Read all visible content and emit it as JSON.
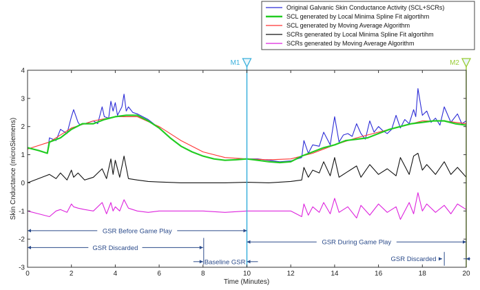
{
  "chart_data": {
    "type": "line",
    "title": "",
    "xlabel": "Time (Minutes)",
    "ylabel": "Skin Cnductance (microSiemens)",
    "xlim": [
      0,
      20
    ],
    "ylim": [
      -3,
      4
    ],
    "xticks": [
      0,
      2,
      4,
      6,
      8,
      10,
      12,
      14,
      16,
      18,
      20
    ],
    "xtick_labels": [
      "0",
      "2",
      "4",
      "6",
      "8",
      "10",
      "12",
      "14",
      "16",
      "18",
      "20"
    ],
    "yticks": [
      -3,
      -2,
      -1,
      0,
      1,
      2,
      3,
      4
    ],
    "ytick_labels": [
      "-3",
      "-2",
      "-1",
      "0",
      "1",
      "2",
      "3",
      "4"
    ],
    "grid": false,
    "legend_position": "top-right",
    "series": [
      {
        "name": "Original Galvanic Skin Conductance Activity (SCL+SCRs)",
        "color": "#2b2bd6",
        "x": [
          0,
          0.5,
          0.9,
          1.0,
          1.3,
          1.5,
          1.8,
          2.0,
          2.1,
          2.3,
          2.4,
          2.6,
          2.8,
          3.0,
          3.2,
          3.4,
          3.5,
          3.7,
          3.8,
          3.9,
          4.0,
          4.1,
          4.3,
          4.4,
          4.5,
          4.6,
          4.8,
          5.0,
          5.5,
          6.0,
          6.5,
          7.0,
          7.5,
          8.0,
          8.5,
          9.0,
          9.5,
          10.0,
          10.5,
          11.0,
          11.5,
          12.0,
          12.5,
          12.6,
          12.8,
          13.0,
          13.3,
          13.5,
          13.8,
          14.0,
          14.2,
          14.4,
          14.6,
          14.8,
          15.0,
          15.2,
          15.4,
          15.6,
          15.8,
          16.0,
          16.2,
          16.4,
          16.6,
          16.8,
          17.0,
          17.2,
          17.4,
          17.6,
          17.7,
          17.8,
          18.0,
          18.2,
          18.4,
          18.6,
          18.8,
          19.0,
          19.3,
          19.6,
          19.8,
          20.0
        ],
        "y": [
          1.25,
          1.15,
          1.05,
          1.6,
          1.5,
          1.9,
          1.75,
          2.35,
          2.6,
          2.15,
          2.05,
          2.1,
          2.15,
          2.2,
          2.1,
          2.7,
          2.35,
          2.3,
          2.9,
          2.55,
          2.85,
          2.4,
          2.7,
          3.15,
          2.55,
          2.7,
          2.5,
          2.45,
          2.25,
          1.95,
          1.6,
          1.3,
          1.1,
          0.95,
          0.85,
          0.8,
          0.82,
          0.85,
          0.85,
          0.8,
          0.75,
          0.78,
          0.9,
          1.5,
          1.05,
          1.35,
          1.3,
          1.8,
          1.35,
          2.35,
          1.45,
          1.7,
          1.75,
          1.65,
          2.1,
          1.75,
          1.55,
          2.2,
          1.8,
          2.0,
          1.85,
          1.75,
          1.9,
          2.4,
          1.95,
          2.25,
          2.1,
          2.6,
          2.35,
          3.35,
          2.4,
          2.55,
          2.15,
          2.3,
          2.05,
          2.7,
          2.15,
          2.45,
          2.1,
          2.2
        ]
      },
      {
        "name": "SCL generated by Local Minima Spline Fit algortihm",
        "color": "#22cc22",
        "x": [
          0,
          0.5,
          0.9,
          1.0,
          1.5,
          2.0,
          2.5,
          3.0,
          3.5,
          4.0,
          4.5,
          5.0,
          5.5,
          6.0,
          6.5,
          7.0,
          7.5,
          8.0,
          8.5,
          9.0,
          9.5,
          10.0,
          10.5,
          11.0,
          11.5,
          12.0,
          12.5,
          13.0,
          13.5,
          14.0,
          14.5,
          15.0,
          15.5,
          16.0,
          16.5,
          17.0,
          17.5,
          18.0,
          18.5,
          19.0,
          19.5,
          20.0
        ],
        "y": [
          1.25,
          1.15,
          1.05,
          1.45,
          1.6,
          1.9,
          2.1,
          2.1,
          2.25,
          2.35,
          2.4,
          2.4,
          2.2,
          1.95,
          1.6,
          1.3,
          1.1,
          0.95,
          0.85,
          0.8,
          0.82,
          0.85,
          0.8,
          0.75,
          0.72,
          0.75,
          0.95,
          1.1,
          1.25,
          1.35,
          1.5,
          1.55,
          1.6,
          1.75,
          1.9,
          2.0,
          2.1,
          2.15,
          2.2,
          2.2,
          2.1,
          2.05
        ]
      },
      {
        "name": "SCL generated by Moving Average Algorithm",
        "color": "#ff3333",
        "x": [
          0,
          1,
          2,
          3,
          4,
          5,
          6,
          7,
          8,
          9,
          10,
          11,
          12,
          13,
          14,
          15,
          16,
          17,
          18,
          19,
          20
        ],
        "y": [
          1.2,
          1.45,
          1.95,
          2.2,
          2.35,
          2.35,
          2.0,
          1.5,
          1.1,
          0.9,
          0.85,
          0.82,
          0.85,
          1.05,
          1.35,
          1.6,
          1.8,
          2.0,
          2.2,
          2.2,
          2.1
        ]
      },
      {
        "name": "SCRs generated by Local Minima Spline Fit algortihm",
        "color": "#111111",
        "x": [
          0,
          1.0,
          1.3,
          1.5,
          1.8,
          2.0,
          2.1,
          2.3,
          2.6,
          3.0,
          3.4,
          3.6,
          3.8,
          3.9,
          4.0,
          4.2,
          4.4,
          4.6,
          5.0,
          5.5,
          6.0,
          7.0,
          8.0,
          9.0,
          10.0,
          11.0,
          12.0,
          12.5,
          12.6,
          12.8,
          13.0,
          13.3,
          13.5,
          13.8,
          14.0,
          14.2,
          14.6,
          15.0,
          15.2,
          15.6,
          16.0,
          16.4,
          16.8,
          17.0,
          17.4,
          17.6,
          17.8,
          18.0,
          18.2,
          18.6,
          19.0,
          19.3,
          19.6,
          20.0
        ],
        "y": [
          0,
          0.3,
          0.15,
          0.35,
          0.1,
          0.45,
          0.2,
          0.35,
          0.1,
          0.2,
          0.5,
          0.15,
          0.85,
          0.3,
          0.8,
          0.2,
          0.95,
          0.15,
          0.1,
          0.05,
          0.03,
          0,
          0,
          0,
          0.02,
          0,
          0.05,
          0.1,
          0.55,
          0.2,
          0.45,
          0.35,
          0.75,
          0.25,
          0.9,
          0.2,
          0.4,
          0.6,
          0.2,
          0.65,
          0.3,
          0.5,
          0.25,
          0.9,
          0.3,
          0.95,
          1.05,
          0.45,
          0.65,
          0.3,
          0.75,
          0.3,
          0.55,
          0.2
        ]
      },
      {
        "name": "SCRs generated by Moving Average Algorithm",
        "color": "#dd22dd",
        "x": [
          0,
          0.5,
          1.0,
          1.3,
          1.5,
          1.8,
          2.0,
          2.1,
          2.3,
          2.6,
          3.0,
          3.4,
          3.6,
          3.8,
          3.9,
          4.0,
          4.2,
          4.4,
          4.6,
          5.0,
          5.5,
          6.0,
          7.0,
          8.0,
          9.0,
          10.0,
          11.0,
          12.0,
          12.5,
          12.6,
          12.8,
          13.0,
          13.3,
          13.5,
          13.8,
          14.0,
          14.2,
          14.6,
          15.0,
          15.2,
          15.6,
          16.0,
          16.4,
          16.8,
          17.0,
          17.4,
          17.6,
          17.8,
          18.0,
          18.2,
          18.6,
          19.0,
          19.3,
          19.6,
          20.0
        ],
        "y": [
          -1.0,
          -1.1,
          -1.2,
          -1.0,
          -0.95,
          -1.05,
          -0.75,
          -0.85,
          -0.9,
          -0.95,
          -1.0,
          -0.7,
          -1.1,
          -0.7,
          -1.0,
          -0.85,
          -1.0,
          -0.6,
          -0.9,
          -1.0,
          -1.05,
          -1.0,
          -1.0,
          -1.0,
          -1.05,
          -1.0,
          -1.0,
          -1.0,
          -1.2,
          -0.75,
          -1.15,
          -0.85,
          -1.05,
          -0.7,
          -1.1,
          -0.55,
          -1.05,
          -0.85,
          -1.25,
          -0.8,
          -1.15,
          -0.75,
          -1.05,
          -0.85,
          -1.3,
          -0.7,
          -1.1,
          -0.35,
          -1.0,
          -0.75,
          -1.05,
          -0.8,
          -1.1,
          -0.75,
          -0.95
        ]
      }
    ],
    "markers": [
      {
        "label": "M1",
        "x": 10,
        "color": "#3ab0dc"
      },
      {
        "label": "M2",
        "x": 20,
        "color": "#99cc33"
      }
    ],
    "annotations": [
      {
        "text": "GSR Before Game Play",
        "x_start": 0,
        "x_end": 10,
        "y": -1.7
      },
      {
        "text": "GSR Discarded",
        "x_start": 0,
        "x_end": 8,
        "y": -2.3
      },
      {
        "text": "Baseline GSR",
        "x_start": 8,
        "x_end": 10,
        "y": -2.8
      },
      {
        "text": "GSR During Game Play",
        "x_start": 10,
        "x_end": 20,
        "y": -2.1
      },
      {
        "text": "GSR Discarded",
        "x_start": 19,
        "x_end": 20,
        "y": -2.7
      }
    ]
  }
}
